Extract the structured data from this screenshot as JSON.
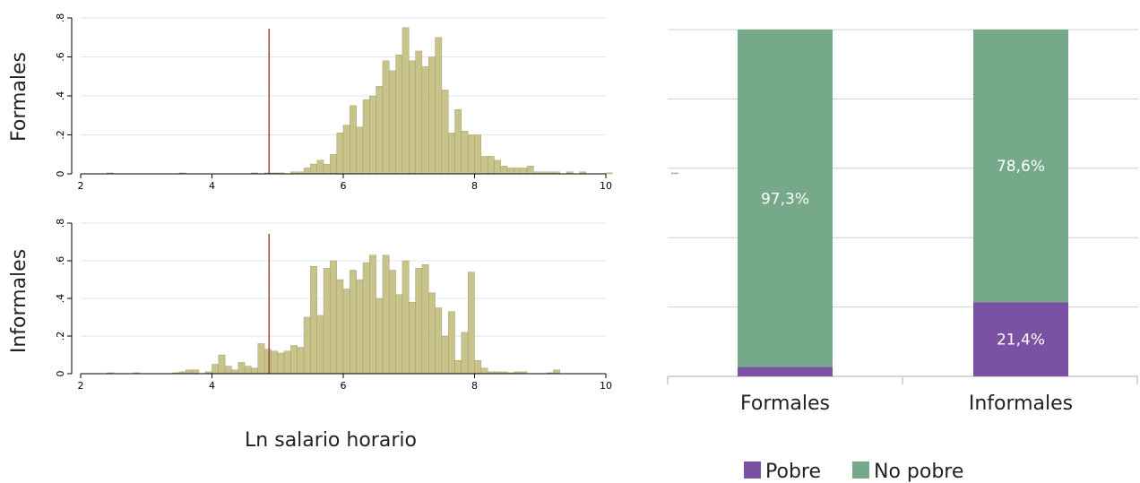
{
  "chart_data": [
    {
      "type": "bar",
      "subtype": "histogram",
      "panel_label": "Formales",
      "bin_start": 2.2,
      "bin_width": 0.1,
      "values": [
        0,
        0,
        0.005,
        0,
        0,
        0,
        0,
        0,
        0,
        0,
        0,
        0,
        0,
        0.005,
        0,
        0,
        0,
        0,
        0,
        0,
        0,
        0,
        0,
        0,
        0.005,
        0,
        0.005,
        0.005,
        0.005,
        0,
        0.01,
        0.01,
        0.03,
        0.05,
        0.07,
        0.05,
        0.1,
        0.21,
        0.25,
        0.35,
        0.24,
        0.38,
        0.4,
        0.45,
        0.58,
        0.53,
        0.61,
        0.75,
        0.58,
        0.63,
        0.55,
        0.6,
        0.7,
        0.43,
        0.21,
        0.33,
        0.22,
        0.2,
        0.2,
        0.09,
        0.09,
        0.07,
        0.04,
        0.03,
        0.03,
        0.03,
        0.04,
        0.01,
        0.01,
        0.01,
        0.01,
        0,
        0.01,
        0,
        0.01,
        0,
        0,
        0,
        0.005,
        0,
        0,
        0,
        0,
        0,
        0,
        0,
        0,
        0,
        0.005,
        0,
        0,
        0
      ],
      "cutoff_x": 4.87,
      "xlim": [
        2,
        10
      ],
      "ylim": [
        0,
        0.8
      ],
      "x_ticks": [
        "2",
        "4",
        "6",
        "8",
        "10"
      ],
      "y_ticks": [
        "0",
        ".2",
        ".4",
        ".6",
        ".8"
      ]
    },
    {
      "type": "bar",
      "subtype": "histogram",
      "panel_label": "Informales",
      "bin_start": 2.2,
      "bin_width": 0.1,
      "values": [
        0,
        0,
        0.005,
        0,
        0,
        0,
        0.005,
        0,
        0,
        0,
        0,
        0,
        0.005,
        0.01,
        0.02,
        0.02,
        0,
        0.01,
        0.05,
        0.1,
        0.04,
        0.02,
        0.06,
        0.04,
        0.03,
        0.16,
        0.13,
        0.12,
        0.11,
        0.12,
        0.15,
        0.14,
        0.3,
        0.57,
        0.31,
        0.56,
        0.6,
        0.5,
        0.45,
        0.55,
        0.5,
        0.59,
        0.63,
        0.4,
        0.63,
        0.55,
        0.42,
        0.6,
        0.38,
        0.56,
        0.58,
        0.43,
        0.35,
        0.2,
        0.33,
        0.07,
        0.22,
        0.54,
        0.07,
        0.03,
        0.01,
        0.01,
        0.01,
        0.005,
        0.01,
        0.01,
        0,
        0,
        0,
        0.005,
        0.02,
        0,
        0,
        0,
        0,
        0,
        0,
        0,
        0,
        0,
        0,
        0,
        0,
        0,
        0,
        0,
        0,
        0,
        0,
        0,
        0,
        0
      ],
      "cutoff_x": 4.87,
      "xlim": [
        2,
        10
      ],
      "ylim": [
        0,
        0.8
      ],
      "x_ticks": [
        "2",
        "4",
        "6",
        "8",
        "10"
      ],
      "y_ticks": [
        "0",
        ".2",
        ".4",
        ".6",
        ".8"
      ]
    },
    {
      "type": "bar",
      "subtype": "stacked_percent",
      "categories": [
        "Formales",
        "Informales"
      ],
      "series": [
        {
          "name": "Pobre",
          "values": [
            2.7,
            21.4
          ],
          "labels": [
            "",
            "21,4%"
          ],
          "color": "#7b52a3"
        },
        {
          "name": "No pobre",
          "values": [
            97.3,
            78.6
          ],
          "labels": [
            "97,3%",
            "78,6%"
          ],
          "color": "#75a98a"
        }
      ],
      "ylim": [
        0,
        100
      ],
      "grid": true,
      "legend_position": "bottom"
    }
  ],
  "labels": {
    "xlabel": "Ln salario horario",
    "panel_formales": "Formales",
    "panel_informales": "Informales"
  },
  "colors": {
    "hist_fill": "#c7c38a",
    "hist_edge": "#9a9664",
    "cutoff_line": "#a0463c",
    "grid": "#e2e7ec",
    "right_grid": "#d0d0d0"
  }
}
